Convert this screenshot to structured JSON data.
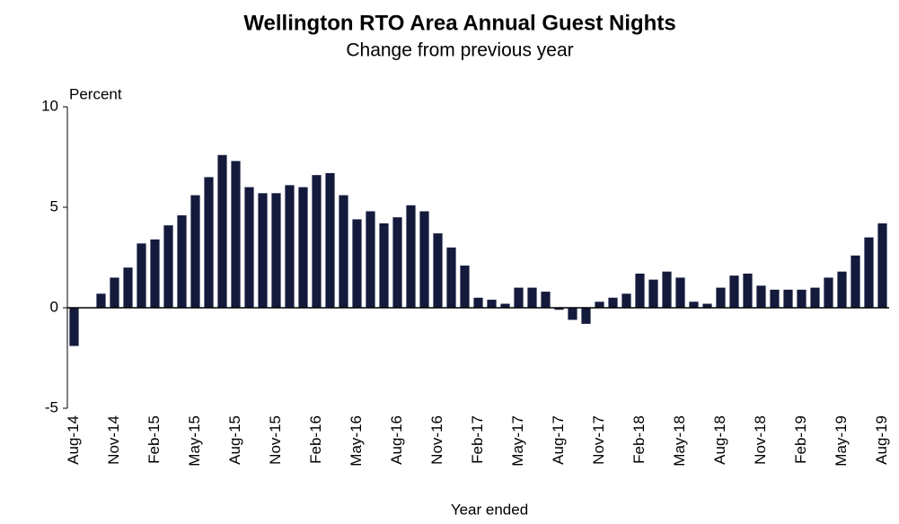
{
  "chart_data": {
    "type": "bar",
    "title": "Wellington RTO Area Annual  Guest Nights",
    "subtitle": "Change  from  previous  year",
    "y_label": "Percent",
    "x_label": "Year ended",
    "categories": [
      "Aug-14",
      null,
      null,
      "Nov-14",
      null,
      null,
      "Feb-15",
      null,
      null,
      "May-15",
      null,
      null,
      "Aug-15",
      null,
      null,
      "Nov-15",
      null,
      null,
      "Feb-16",
      null,
      null,
      "May-16",
      null,
      null,
      "Aug-16",
      null,
      null,
      "Nov-16",
      null,
      null,
      "Feb-17",
      null,
      null,
      "May-17",
      null,
      null,
      "Aug-17",
      null,
      null,
      "Nov-17",
      null,
      null,
      "Feb-18",
      null,
      null,
      "May-18",
      null,
      null,
      "Aug-18",
      null,
      null,
      "Nov-18",
      null,
      null,
      "Feb-19",
      null,
      null,
      "May-19",
      null,
      null,
      "Aug-19"
    ],
    "values": [
      -1.9,
      0,
      0.7,
      1.5,
      2.0,
      3.2,
      3.4,
      4.1,
      4.6,
      5.6,
      6.5,
      7.6,
      7.3,
      6.0,
      5.7,
      5.7,
      6.1,
      6.0,
      6.6,
      6.7,
      5.6,
      4.4,
      4.8,
      4.2,
      4.5,
      5.1,
      4.8,
      3.7,
      3.0,
      2.1,
      0.5,
      0.4,
      0.2,
      1.0,
      1.0,
      0.8,
      -0.1,
      -0.6,
      -0.8,
      0.3,
      0.5,
      0.7,
      1.7,
      1.4,
      1.8,
      1.5,
      0.3,
      0.2,
      1.0,
      1.6,
      1.7,
      1.1,
      0.9,
      0.9,
      0.9,
      1.0,
      1.5,
      1.8,
      2.6,
      3.5,
      4.2
    ],
    "color": "#141a3c",
    "ylim": [
      -5,
      10
    ],
    "yticks": [
      -5,
      0,
      5,
      10
    ],
    "grid": false
  }
}
